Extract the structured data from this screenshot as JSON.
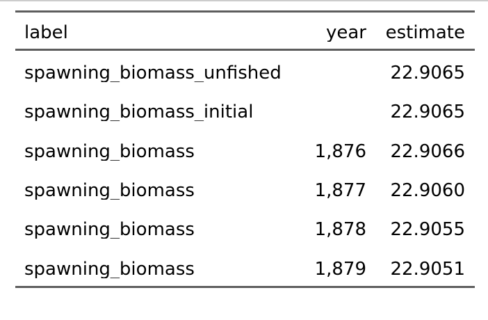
{
  "chart_data": {
    "type": "table",
    "columns": [
      "label",
      "year",
      "estimate"
    ],
    "alignments": [
      "left",
      "right",
      "right"
    ],
    "rows": [
      [
        "spawning_biomass_unfished",
        "",
        "22.9065"
      ],
      [
        "spawning_biomass_initial",
        "",
        "22.9065"
      ],
      [
        "spawning_biomass",
        "1,876",
        "22.9066"
      ],
      [
        "spawning_biomass",
        "1,877",
        "22.9060"
      ],
      [
        "spawning_biomass",
        "1,878",
        "22.9055"
      ],
      [
        "spawning_biomass",
        "1,879",
        "22.9051"
      ]
    ],
    "legend": "none",
    "grid": "horizontal-rules-only"
  },
  "colors": {
    "rule": "#5d5d5d",
    "top_edge": "#cccccc",
    "text": "#000000",
    "background": "#ffffff"
  }
}
